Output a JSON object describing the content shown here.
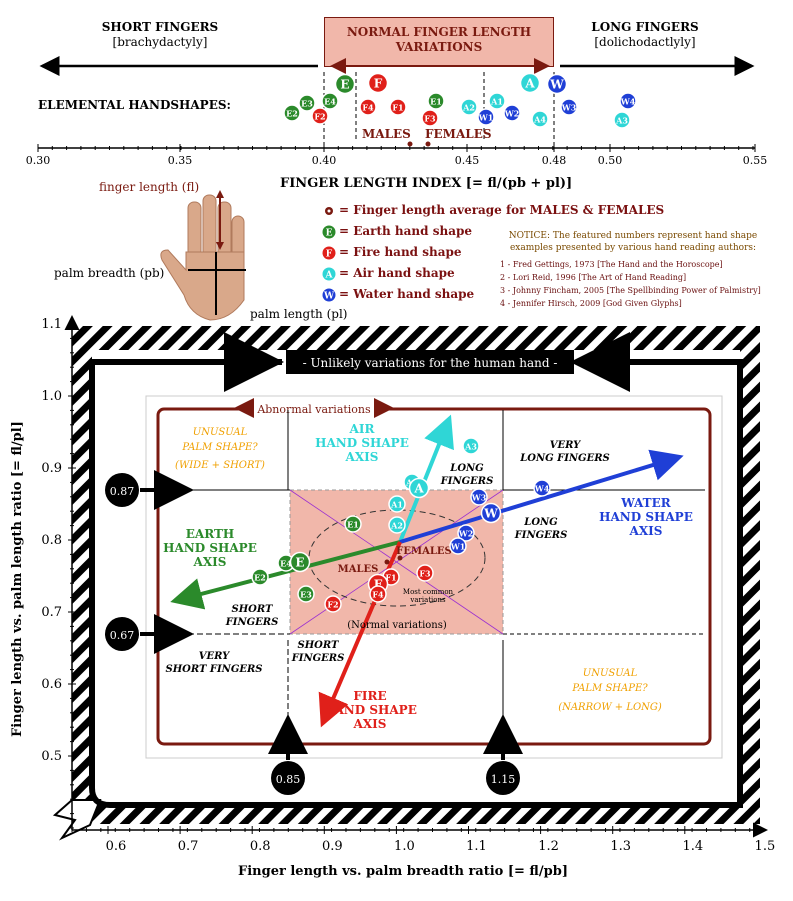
{
  "header": {
    "short": "SHORT FINGERS",
    "short_sub": "[brachydactyly]",
    "normal": "NORMAL FINGER LENGTH VARIATIONS",
    "long": "LONG FINGERS",
    "long_sub": "[dolichodactlyly]",
    "row_label": "ELEMENTAL HANDSHAPES:",
    "males": "MALES",
    "females": "FEMALES"
  },
  "index_axis": {
    "title": "FINGER LENGTH INDEX [= fl/(pb + pl)]",
    "ticks": [
      "0.30",
      "0.35",
      "0.40",
      "0.45",
      "0.48",
      "0.50",
      "0.55"
    ]
  },
  "hand": {
    "fl": "finger length (fl)",
    "pb": "palm breadth (pb)",
    "pl": "palm length (pl)"
  },
  "legend": {
    "avg": "= Finger length average for MALES & FEMALES",
    "earth": "= Earth hand shape",
    "fire": "= Fire hand shape",
    "air": "= Air hand shape",
    "water": "= Water hand shape"
  },
  "notice": {
    "text": "NOTICE: The featured numbers represent hand shape examples presented by various hand reading authors:",
    "refs": [
      "1 - Fred Gettings, 1973 [The Hand and the Horoscope]",
      "2 - Lori Reid, 1996 [The Art of Hand Reading]",
      "3 - Johnny Fincham, 2005 [The Spellbinding Power of Palmistry]",
      "4 - Jennifer Hirsch, 2009 [God Given Glyphs]"
    ]
  },
  "plot": {
    "unlikely": "- Unlikely variations for the human hand -",
    "abnormal": "Abnormal variations",
    "unusual_wide_1": "UNUSUAL",
    "unusual_wide_2": "PALM SHAPE?",
    "unusual_wide_3": "(WIDE + SHORT)",
    "unusual_narrow_1": "UNUSUAL",
    "unusual_narrow_2": "PALM SHAPE?",
    "unusual_narrow_3": "(NARROW + LONG)",
    "air_axis": [
      "AIR",
      "HAND SHAPE",
      "AXIS"
    ],
    "water_axis": [
      "WATER",
      "HAND SHAPE",
      "AXIS"
    ],
    "earth_axis": [
      "EARTH",
      "HAND SHAPE",
      "AXIS"
    ],
    "fire_axis": [
      "FIRE",
      "HAND SHAPE",
      "AXIS"
    ],
    "very_long": [
      "VERY",
      "LONG FINGERS"
    ],
    "long_a": [
      "LONG",
      "FINGERS"
    ],
    "long_b": [
      "LONG",
      "FINGERS"
    ],
    "short_a": [
      "SHORT",
      "FINGERS"
    ],
    "short_b": [
      "SHORT",
      "FINGERS"
    ],
    "very_short": [
      "VERY",
      "SHORT FINGERS"
    ],
    "males": "MALES",
    "females": "FEMALES",
    "most_common": [
      "Most common",
      "variations"
    ],
    "normal": "(Normal variations)",
    "mark_087": "0.87",
    "mark_067": "0.67",
    "mark_085": "0.85",
    "mark_115": "1.15"
  },
  "y_axis": {
    "title": "Finger length vs. palm length ratio [= fl/pl]",
    "ticks": [
      "1.1",
      "1.0",
      "0.9",
      "0.8",
      "0.7",
      "0.6",
      "0.5"
    ]
  },
  "x_axis": {
    "title": "Finger length vs. palm breadth ratio [= fl/pb]",
    "ticks": [
      "0.6",
      "0.7",
      "0.8",
      "0.9",
      "1.0",
      "1.1",
      "1.2",
      "1.3",
      "1.4",
      "1.5"
    ]
  },
  "colors": {
    "earth": "#2b8a2b",
    "fire": "#e0201a",
    "air": "#2fd6d6",
    "water": "#1f3fd6",
    "maroon": "#7a1a10",
    "pink": "#f1b7aa",
    "orange": "#f0a000"
  },
  "top_markers": [
    {
      "t": "E",
      "c": "earth",
      "big": true
    },
    {
      "t": "F",
      "c": "fire",
      "big": true
    },
    {
      "t": "E3",
      "c": "earth"
    },
    {
      "t": "E4",
      "c": "earth"
    },
    {
      "t": "E2",
      "c": "earth"
    },
    {
      "t": "F2",
      "c": "fire"
    },
    {
      "t": "F4",
      "c": "fire"
    },
    {
      "t": "F1",
      "c": "fire"
    },
    {
      "t": "E1",
      "c": "earth"
    },
    {
      "t": "F3",
      "c": "fire"
    },
    {
      "t": "A2",
      "c": "air"
    },
    {
      "t": "A1",
      "c": "air"
    },
    {
      "t": "W1",
      "c": "water"
    },
    {
      "t": "W2",
      "c": "water"
    },
    {
      "t": "A",
      "c": "air",
      "big": true
    },
    {
      "t": "W",
      "c": "water",
      "big": true
    },
    {
      "t": "A4",
      "c": "air"
    },
    {
      "t": "W3",
      "c": "water"
    },
    {
      "t": "W4",
      "c": "water"
    },
    {
      "t": "A3",
      "c": "air"
    }
  ],
  "plot_markers": [
    {
      "t": "A3",
      "c": "air"
    },
    {
      "t": "A1",
      "c": "air"
    },
    {
      "t": "A4",
      "c": "air"
    },
    {
      "t": "A",
      "c": "air",
      "big": true
    },
    {
      "t": "A2",
      "c": "air"
    },
    {
      "t": "W3",
      "c": "water"
    },
    {
      "t": "W4",
      "c": "water"
    },
    {
      "t": "W",
      "c": "water",
      "big": true
    },
    {
      "t": "W2",
      "c": "water"
    },
    {
      "t": "W1",
      "c": "water"
    },
    {
      "t": "E1",
      "c": "earth"
    },
    {
      "t": "E4",
      "c": "earth"
    },
    {
      "t": "E",
      "c": "earth",
      "big": true
    },
    {
      "t": "E2",
      "c": "earth"
    },
    {
      "t": "E3",
      "c": "earth"
    },
    {
      "t": "F1",
      "c": "fire"
    },
    {
      "t": "F",
      "c": "fire",
      "big": true
    },
    {
      "t": "F4",
      "c": "fire"
    },
    {
      "t": "F3",
      "c": "fire"
    },
    {
      "t": "F2",
      "c": "fire"
    }
  ]
}
